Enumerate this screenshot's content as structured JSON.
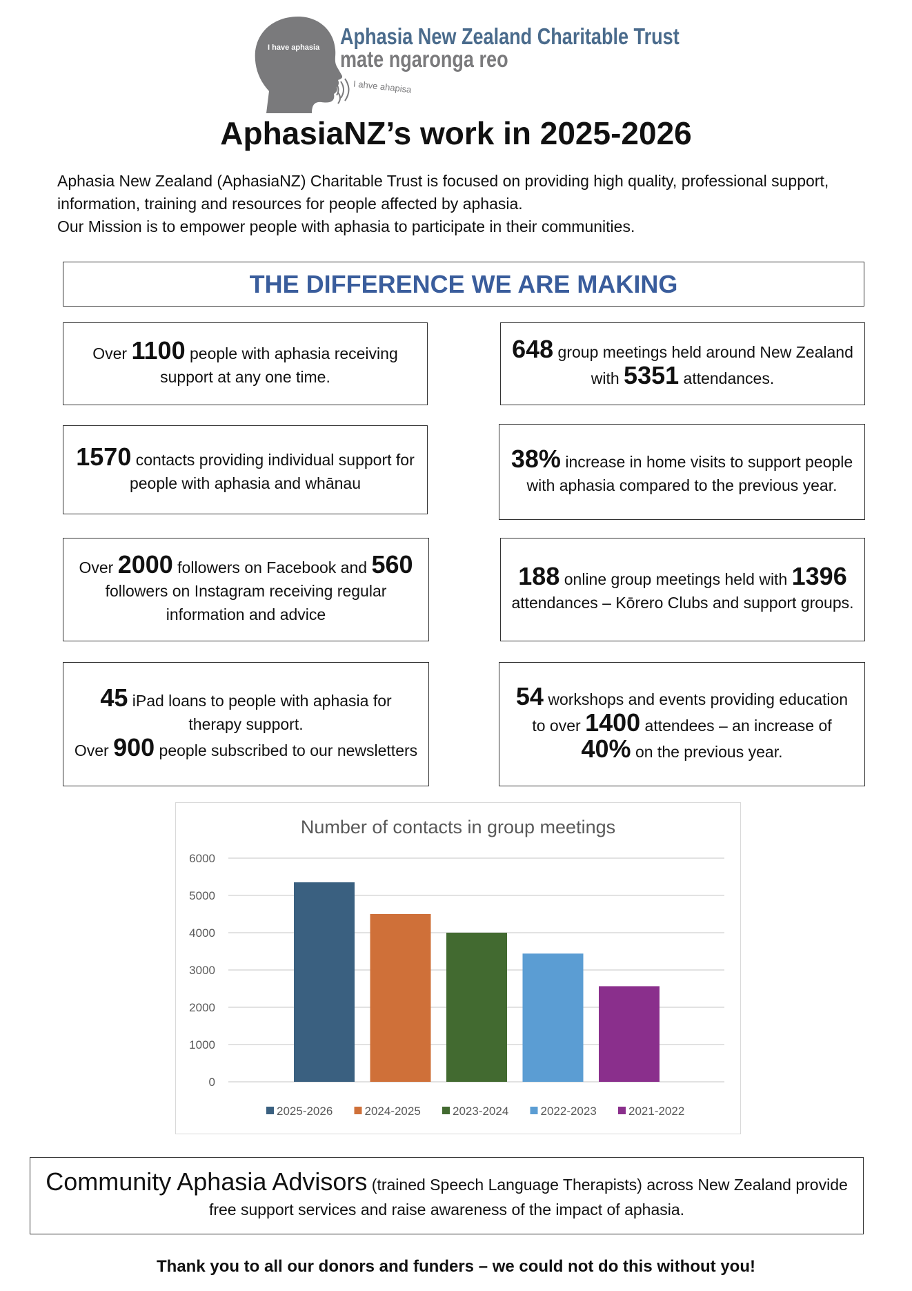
{
  "logo": {
    "org_name": "Aphasia New Zealand Charitable Trust",
    "maori_name": "mate ngaronga reo",
    "head_text": "I have aphasia",
    "speech_text": "I ahve ahapisa"
  },
  "title": "AphasiaNZ’s work in 2025-2026",
  "intro": {
    "line1": "Aphasia New Zealand (AphasiaNZ) Charitable Trust is focused on providing high quality, professional support, information, training and resources for people affected by aphasia.",
    "line2": "Our Mission is to empower people with aphasia to participate in their communities."
  },
  "section_header": "THE DIFFERENCE WE ARE MAKING",
  "accent_color": "#3a5d9c",
  "stats": [
    {
      "segments": [
        {
          "t": "Over "
        },
        {
          "t": "1100",
          "b": true
        },
        {
          "t": " people with aphasia receiving support at any one time."
        }
      ]
    },
    {
      "segments": [
        {
          "t": "648",
          "b": true
        },
        {
          "t": " group meetings held around New Zealand with "
        },
        {
          "t": "5351",
          "b": true
        },
        {
          "t": " attendances."
        }
      ]
    },
    {
      "segments": [
        {
          "t": "1570",
          "b": true
        },
        {
          "t": " contacts providing individual support for people with aphasia and whānau"
        }
      ]
    },
    {
      "segments": [
        {
          "t": "38%",
          "b": true
        },
        {
          "t": " increase in  home visits to support people with aphasia compared to the previous year."
        }
      ]
    },
    {
      "segments": [
        {
          "t": "Over "
        },
        {
          "t": "2000",
          "b": true
        },
        {
          "t": " followers on Facebook and "
        },
        {
          "t": "560",
          "b": true
        },
        {
          "t": " followers on Instagram receiving regular information and advice"
        }
      ]
    },
    {
      "segments": [
        {
          "t": "188",
          "b": true
        },
        {
          "t": " online group meetings held with "
        },
        {
          "t": "1396",
          "b": true
        },
        {
          "t": " attendances – Kōrero Clubs and support groups."
        }
      ]
    },
    {
      "segments": [
        {
          "t": "45",
          "b": true
        },
        {
          "t": " iPad loans to people with aphasia for therapy support."
        },
        {
          "br": true
        },
        {
          "t": "Over "
        },
        {
          "t": "900",
          "b": true
        },
        {
          "t": " people subscribed to our newsletters"
        }
      ]
    },
    {
      "segments": [
        {
          "t": "54",
          "b": true
        },
        {
          "t": " workshops and events providing education to over "
        },
        {
          "t": "1400",
          "b": true
        },
        {
          "t": " attendees – an increase of "
        },
        {
          "t": "40%",
          "b": true
        },
        {
          "t": " on the previous year."
        }
      ]
    }
  ],
  "chart_data": {
    "type": "bar",
    "title": "Number of contacts in group meetings",
    "categories": [
      "2025-2026",
      "2024-2025",
      "2023-2024",
      "2022-2023",
      "2021-2022"
    ],
    "values": [
      5351,
      4500,
      4000,
      3440,
      2565
    ],
    "colors": [
      "#3a6080",
      "#cf7039",
      "#426a30",
      "#5b9dd3",
      "#8a2f8c"
    ],
    "ylim": [
      0,
      6000
    ],
    "yticks": [
      0,
      1000,
      2000,
      3000,
      4000,
      5000,
      6000
    ],
    "grid": true,
    "legend": "bottom",
    "xlabel": "",
    "ylabel": ""
  },
  "bottom": {
    "big": "Community Aphasia Advisors",
    "rest": " (trained Speech Language Therapists) across New Zealand provide free support services and raise awareness of the impact of aphasia."
  },
  "thanks": "Thank you to all our donors and funders – we could not do this without you!"
}
